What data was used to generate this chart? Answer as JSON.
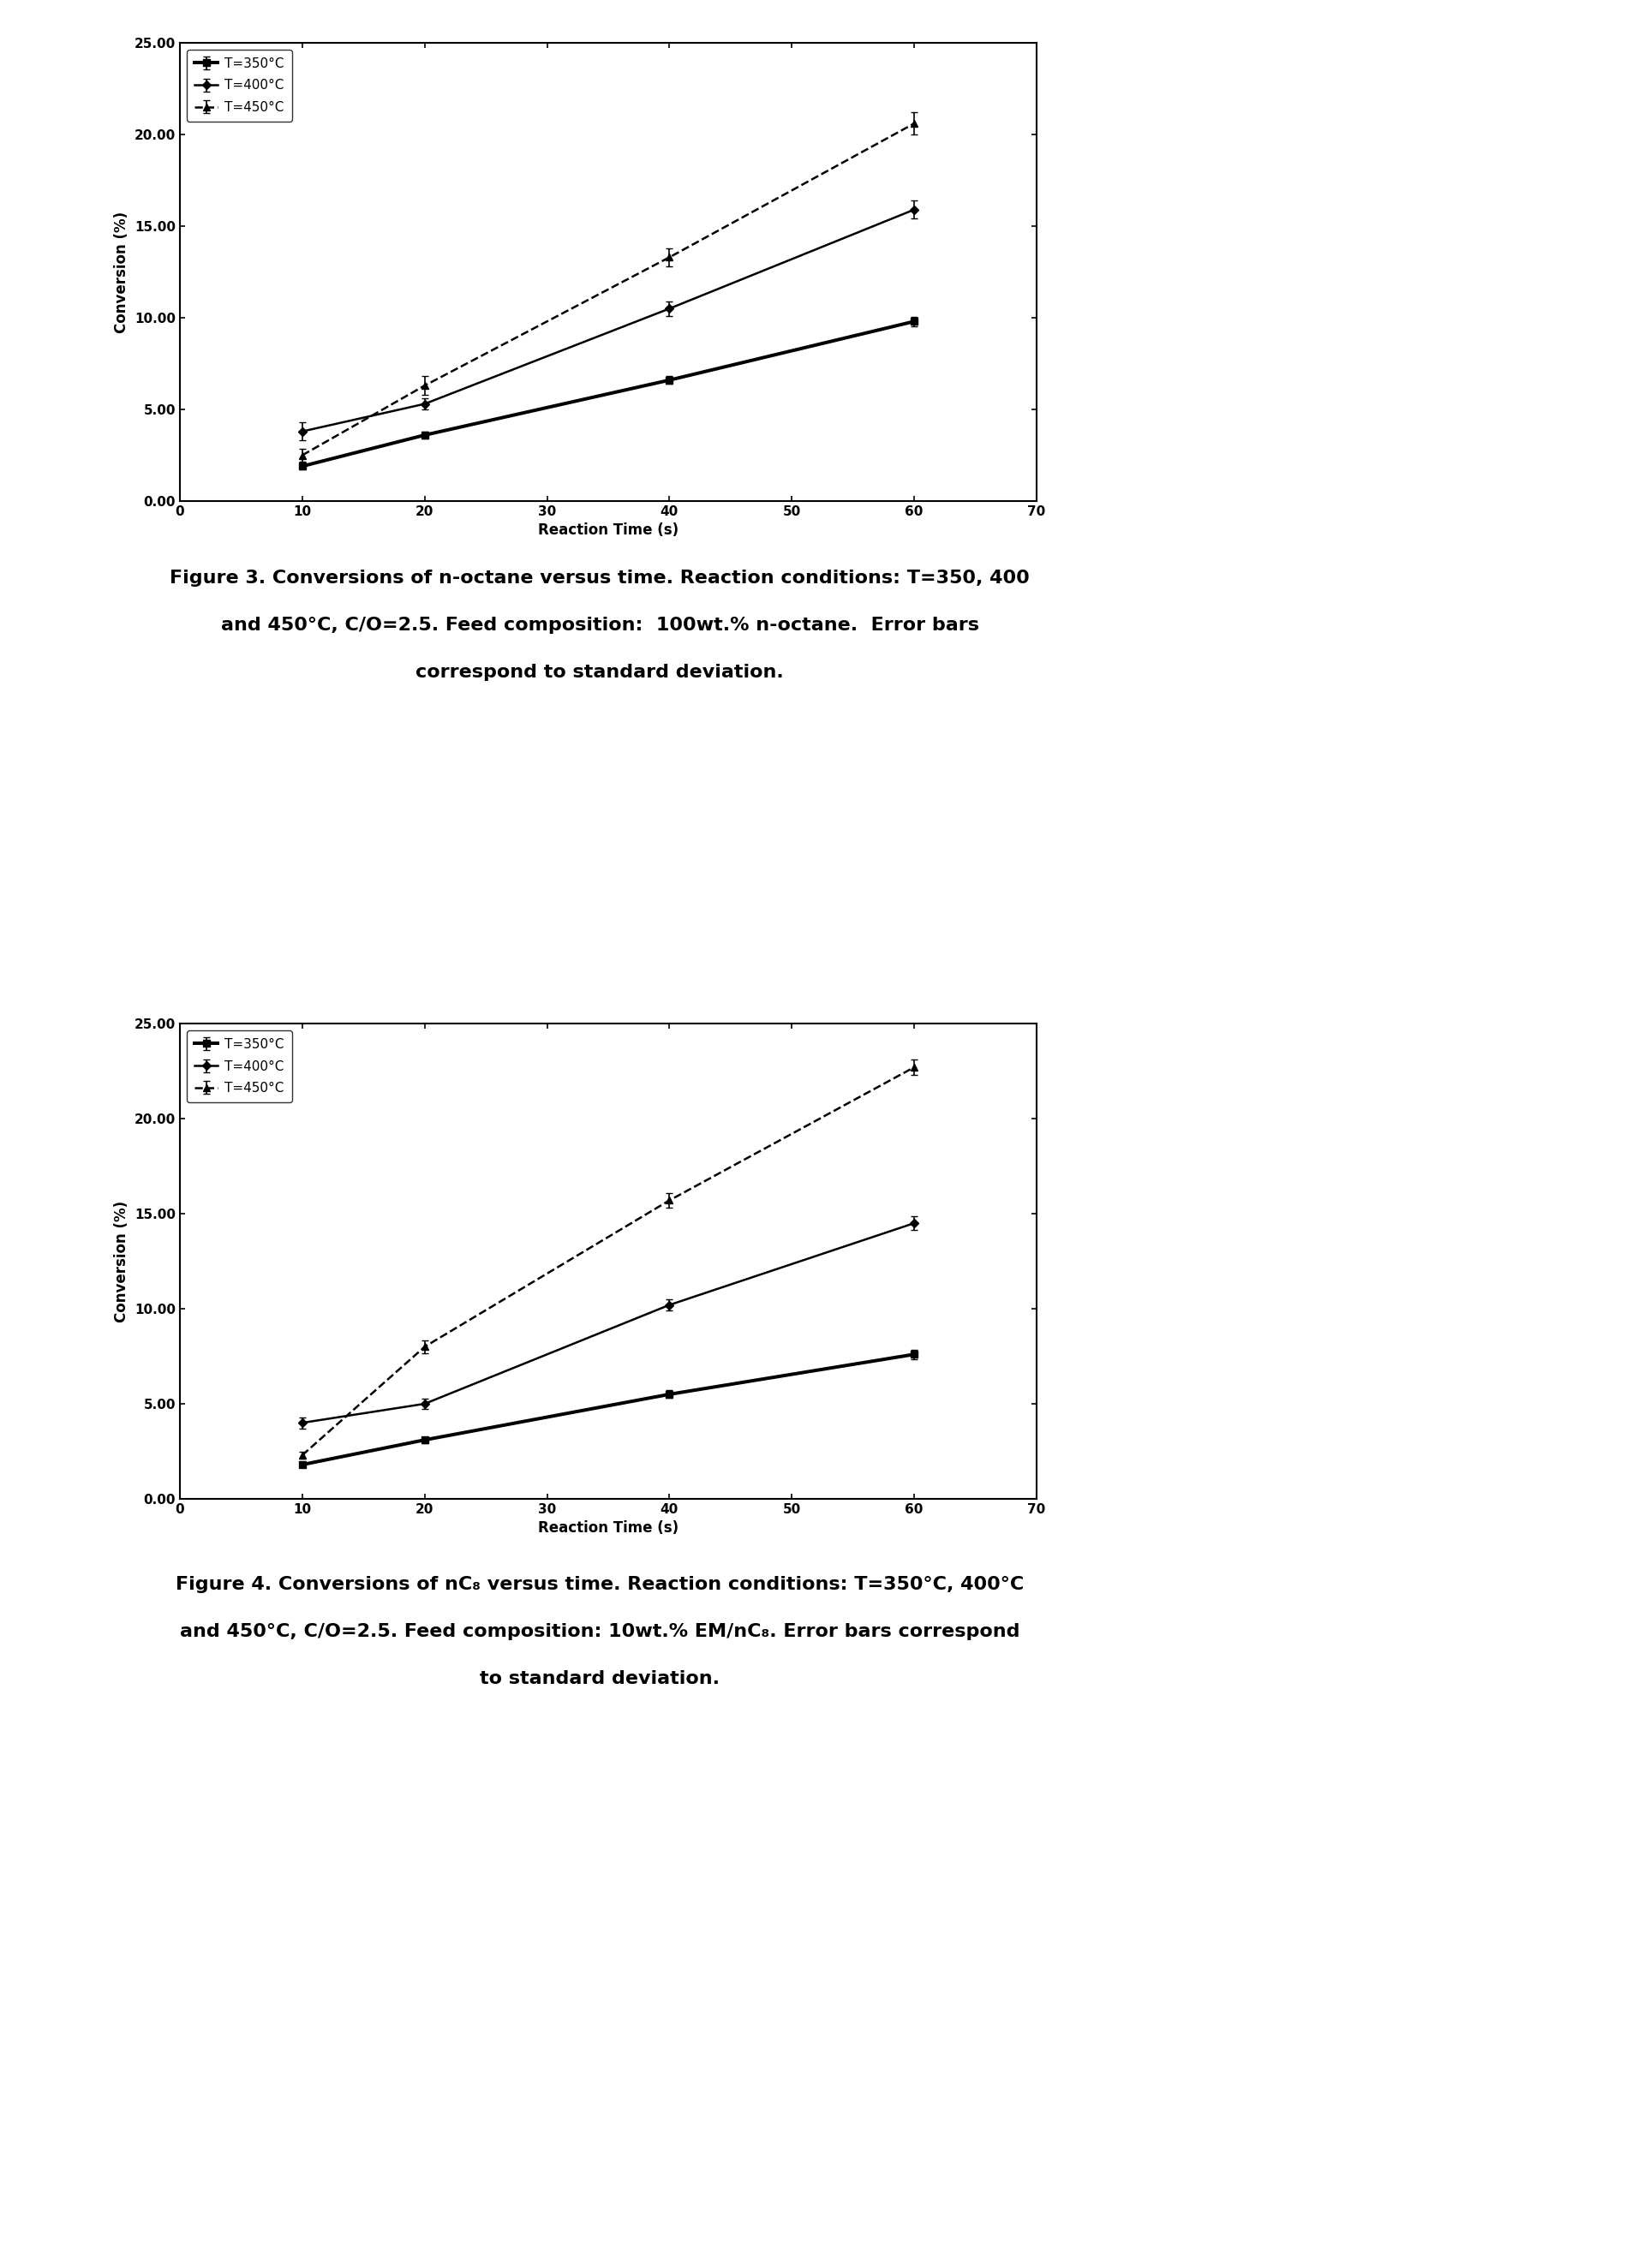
{
  "fig3": {
    "x": [
      10,
      20,
      40,
      60
    ],
    "T350": {
      "y": [
        1.9,
        3.6,
        6.6,
        9.8
      ],
      "yerr": [
        0.15,
        0.2,
        0.2,
        0.25
      ]
    },
    "T400": {
      "y": [
        3.8,
        5.3,
        10.5,
        15.9
      ],
      "yerr": [
        0.5,
        0.3,
        0.4,
        0.5
      ]
    },
    "T450": {
      "y": [
        2.5,
        6.3,
        13.3,
        20.6
      ],
      "yerr": [
        0.35,
        0.5,
        0.5,
        0.6
      ]
    },
    "ylim": [
      0,
      25
    ],
    "yticks": [
      0.0,
      5.0,
      10.0,
      15.0,
      20.0,
      25.0
    ],
    "xlim": [
      0,
      70
    ],
    "xticks": [
      0,
      10,
      20,
      30,
      40,
      50,
      60,
      70
    ],
    "ylabel": "Conversion (%)",
    "xlabel": "Reaction Time (s)",
    "legend_labels": [
      "T=350°C",
      "T=400°C",
      "T=450°C"
    ]
  },
  "fig4": {
    "x": [
      10,
      20,
      40,
      60
    ],
    "T350": {
      "y": [
        1.8,
        3.1,
        5.5,
        7.6
      ],
      "yerr": [
        0.15,
        0.15,
        0.2,
        0.25
      ]
    },
    "T400": {
      "y": [
        4.0,
        5.0,
        10.2,
        14.5
      ],
      "yerr": [
        0.3,
        0.25,
        0.3,
        0.35
      ]
    },
    "T450": {
      "y": [
        2.3,
        8.0,
        15.7,
        22.7
      ],
      "yerr": [
        0.2,
        0.35,
        0.4,
        0.4
      ]
    },
    "ylim": [
      0,
      25
    ],
    "yticks": [
      0.0,
      5.0,
      10.0,
      15.0,
      20.0,
      25.0
    ],
    "xlim": [
      0,
      70
    ],
    "xticks": [
      0,
      10,
      20,
      30,
      40,
      50,
      60,
      70
    ],
    "ylabel": "Conversion (%)",
    "xlabel": "Reaction Time (s)",
    "legend_labels": [
      "T=350°C",
      "T=400°C",
      "T=450°C"
    ]
  },
  "fig3_caption": [
    "Figure 3. Conversions of n-octane versus time. Reaction conditions: T=350, 400",
    "and 450°C, C/O=2.5. Feed composition:  100wt.% n-octane.  Error bars",
    "correspond to standard deviation."
  ],
  "fig4_caption": [
    "Figure 4. Conversions of nC₈ versus time. Reaction conditions: T=350°C, 400°C",
    "and 450°C, C/O=2.5. Feed composition: 10wt.% EM/nC₈. Error bars correspond",
    "to standard deviation."
  ],
  "line_color": "#000000",
  "bg_color": "#ffffff",
  "marker_size": 6,
  "linewidth": 1.8,
  "capsize": 3,
  "elinewidth": 1.2,
  "tick_fontsize": 11,
  "label_fontsize": 12,
  "legend_fontsize": 11,
  "caption_fontsize": 16
}
